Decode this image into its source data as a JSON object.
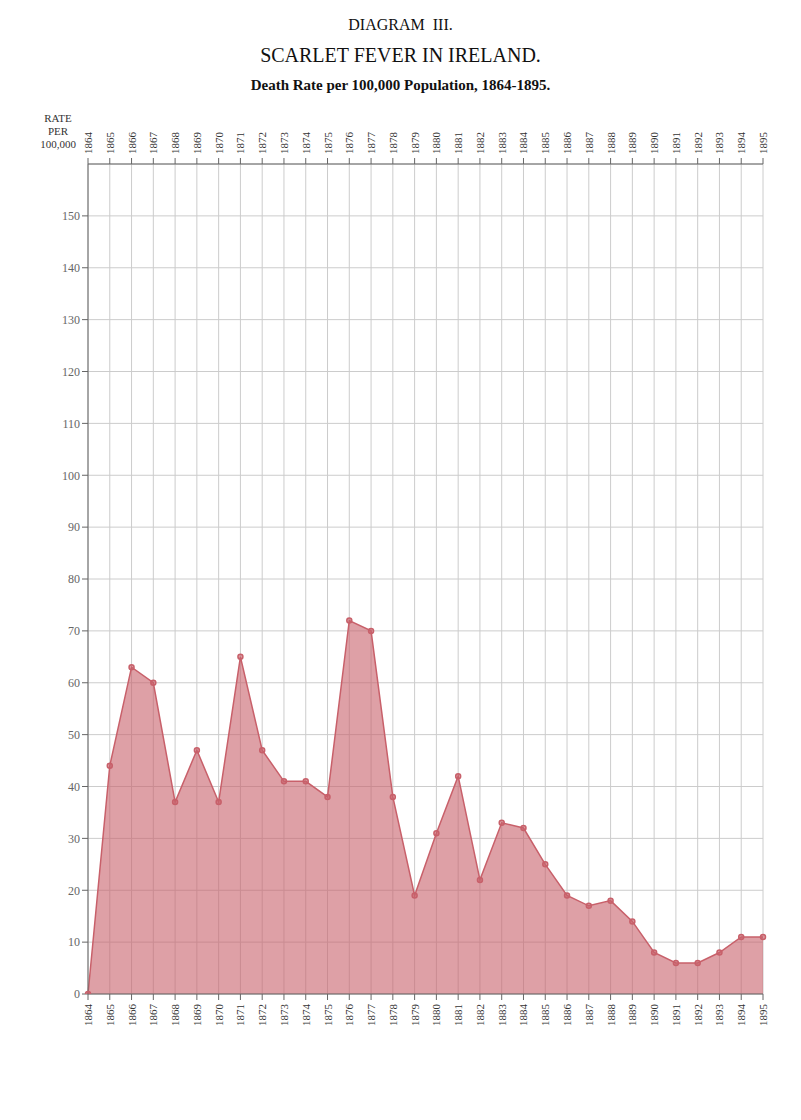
{
  "chart_data": {
    "type": "area",
    "annotations": [
      "DIAGRAM  III."
    ],
    "title": "SCARLET FEVER IN IRELAND.",
    "subtitle": "Death Rate per 100,000 Population, 1864-1895.",
    "y_label": "RATE\nPER\n100,000",
    "categories": [
      "1864",
      "1865",
      "1866",
      "1867",
      "1868",
      "1869",
      "1870",
      "1871",
      "1872",
      "1873",
      "1874",
      "1875",
      "1876",
      "1877",
      "1878",
      "1879",
      "1880",
      "1881",
      "1882",
      "1883",
      "1884",
      "1885",
      "1886",
      "1887",
      "1888",
      "1889",
      "1890",
      "1891",
      "1892",
      "1893",
      "1894",
      "1895"
    ],
    "values": [
      0,
      44,
      63,
      60,
      37,
      47,
      37,
      65,
      47,
      41,
      41,
      38,
      72,
      70,
      38,
      19,
      31,
      42,
      22,
      33,
      32,
      25,
      19,
      17,
      18,
      14,
      8,
      6,
      6,
      8,
      11,
      11
    ],
    "color": "#c8606a",
    "marker": "circle",
    "ylim": [
      0,
      160
    ],
    "yticks": [
      0,
      10,
      20,
      30,
      40,
      50,
      60,
      70,
      80,
      90,
      100,
      110,
      120,
      130,
      140,
      150
    ],
    "grid": true
  }
}
